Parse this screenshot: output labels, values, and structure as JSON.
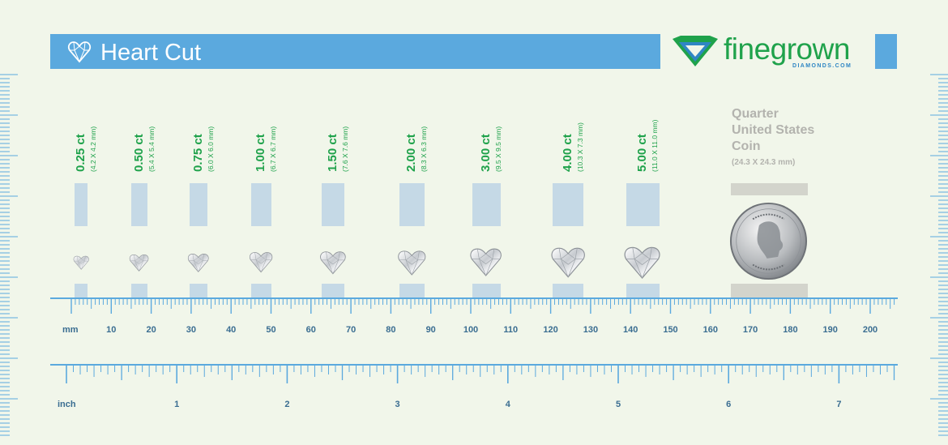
{
  "header": {
    "title": "Heart Cut",
    "icon": "heart-diamond-icon"
  },
  "brand": {
    "name": "finegrown",
    "sub": "DIAMONDS.COM",
    "icon": "diamond-logo-icon",
    "colors": {
      "green": "#1fa24b",
      "blue": "#2f86c4"
    }
  },
  "diamonds": [
    {
      "carat": "0.25 ct",
      "dims": "(4.2 X 4.2 mm)",
      "size_mm": 4.2
    },
    {
      "carat": "0.50 ct",
      "dims": "(5.4 X 5.4 mm)",
      "size_mm": 5.4
    },
    {
      "carat": "0.75 ct",
      "dims": "(6.0 X 6.0 mm)",
      "size_mm": 6.0
    },
    {
      "carat": "1.00 ct",
      "dims": "(6.7 X 6.7 mm)",
      "size_mm": 6.7
    },
    {
      "carat": "1.50 ct",
      "dims": "(7.6 X 7.6 mm)",
      "size_mm": 7.6
    },
    {
      "carat": "2.00 ct",
      "dims": "(8.3 X 6.3 mm)",
      "size_mm": 8.3
    },
    {
      "carat": "3.00 ct",
      "dims": "(9.5 X 9.5 mm)",
      "size_mm": 9.5
    },
    {
      "carat": "4.00 ct",
      "dims": "(10.3 X 7.3 mm)",
      "size_mm": 10.3
    },
    {
      "carat": "5.00 ct",
      "dims": "(11.0 X 11.0 mm)",
      "size_mm": 11.0
    }
  ],
  "coin": {
    "title_lines": [
      "Quarter",
      "United States",
      "Coin"
    ],
    "dims": "(24.3 X 24.3 mm)",
    "icon": "quarter-coin-icon"
  },
  "mm_ruler": {
    "unit": "mm",
    "labels": [
      "10",
      "20",
      "30",
      "40",
      "50",
      "60",
      "70",
      "80",
      "90",
      "100",
      "110",
      "120",
      "130",
      "140",
      "150",
      "160",
      "170",
      "180",
      "190",
      "200"
    ]
  },
  "inch_ruler": {
    "unit": "inch",
    "labels": [
      "1",
      "2",
      "3",
      "4",
      "5",
      "6",
      "7"
    ]
  },
  "colors": {
    "background": "#f1f6ea",
    "header": "#5ba9de",
    "rule": "#5ba9de",
    "swatch": "#c5d9e6",
    "coin_bar": "#d3d4cc"
  }
}
